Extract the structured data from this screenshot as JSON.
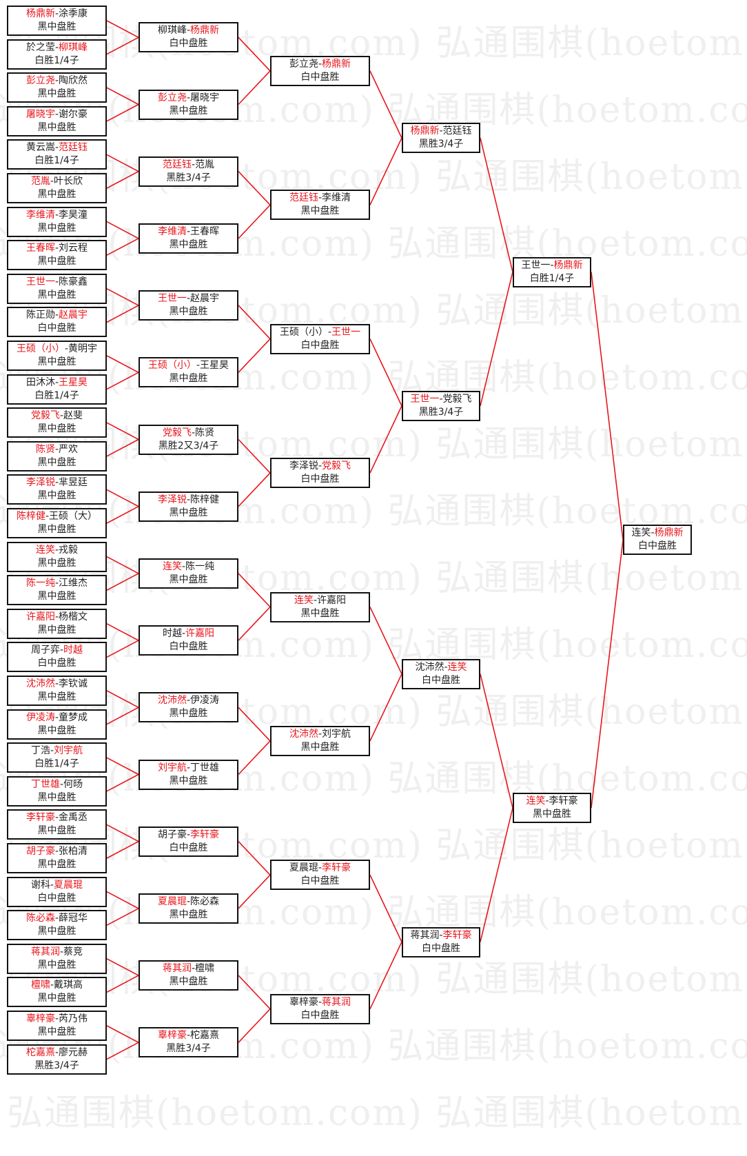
{
  "watermark": {
    "text": "弘通围棋(hoetom.com) 弘通围棋(hoetom.com)"
  },
  "colors": {
    "winner": "#e8151b",
    "line": "#e8151b",
    "border": "#111111"
  },
  "rounds": [
    {
      "matches": [
        {
          "p1": "杨鼎新",
          "p2": "涂季康",
          "winner": 0,
          "result": "黑中盘胜"
        },
        {
          "p1": "於之莹",
          "p2": "柳琪峰",
          "winner": 1,
          "result": "白胜1/4子"
        },
        {
          "p1": "彭立尧",
          "p2": "陶欣然",
          "winner": 0,
          "result": "黑中盘胜"
        },
        {
          "p1": "屠晓宇",
          "p2": "谢尔豪",
          "winner": 0,
          "result": "黑中盘胜"
        },
        {
          "p1": "黄云嵩",
          "p2": "范廷钰",
          "winner": 1,
          "result": "白胜1/4子"
        },
        {
          "p1": "范胤",
          "p2": "叶长欣",
          "winner": 0,
          "result": "黑中盘胜"
        },
        {
          "p1": "李维清",
          "p2": "李昊潼",
          "winner": 0,
          "result": "黑中盘胜"
        },
        {
          "p1": "王春晖",
          "p2": "刘云程",
          "winner": 0,
          "result": "黑中盘胜"
        },
        {
          "p1": "王世一",
          "p2": "陈豪鑫",
          "winner": 0,
          "result": "黑中盘胜"
        },
        {
          "p1": "陈正勋",
          "p2": "赵晨宇",
          "winner": 1,
          "result": "白中盘胜"
        },
        {
          "p1": "王硕（小）",
          "p2": "黄明宇",
          "winner": 0,
          "result": "黑中盘胜"
        },
        {
          "p1": "田沐沐",
          "p2": "王星昊",
          "winner": 1,
          "result": "白胜1/4子"
        },
        {
          "p1": "党毅飞",
          "p2": "赵斐",
          "winner": 0,
          "result": "黑中盘胜"
        },
        {
          "p1": "陈贤",
          "p2": "严欢",
          "winner": 0,
          "result": "黑中盘胜"
        },
        {
          "p1": "李泽锐",
          "p2": "芈昱廷",
          "winner": 0,
          "result": "黑中盘胜"
        },
        {
          "p1": "陈梓健",
          "p2": "王硕（大）",
          "winner": 0,
          "result": "黑中盘胜"
        },
        {
          "p1": "连笑",
          "p2": "戎毅",
          "winner": 0,
          "result": "黑中盘胜"
        },
        {
          "p1": "陈一纯",
          "p2": "江维杰",
          "winner": 0,
          "result": "黑中盘胜"
        },
        {
          "p1": "许嘉阳",
          "p2": "杨楷文",
          "winner": 0,
          "result": "黑中盘胜"
        },
        {
          "p1": "周子弈",
          "p2": "时越",
          "winner": 1,
          "result": "白中盘胜"
        },
        {
          "p1": "沈沛然",
          "p2": "李钦诚",
          "winner": 0,
          "result": "黑中盘胜"
        },
        {
          "p1": "伊凌涛",
          "p2": "童梦成",
          "winner": 0,
          "result": "黑中盘胜"
        },
        {
          "p1": "丁浩",
          "p2": "刘宇航",
          "winner": 1,
          "result": "白胜1/4子"
        },
        {
          "p1": "丁世雄",
          "p2": "何旸",
          "winner": 0,
          "result": "黑中盘胜"
        },
        {
          "p1": "李轩豪",
          "p2": "金禹丞",
          "winner": 0,
          "result": "黑中盘胜"
        },
        {
          "p1": "胡子豪",
          "p2": "张柏清",
          "winner": 0,
          "result": "黑中盘胜"
        },
        {
          "p1": "谢科",
          "p2": "夏晨琨",
          "winner": 1,
          "result": "白中盘胜"
        },
        {
          "p1": "陈必森",
          "p2": "薛冠华",
          "winner": 0,
          "result": "黑中盘胜"
        },
        {
          "p1": "蒋其润",
          "p2": "蔡竞",
          "winner": 0,
          "result": "黑中盘胜"
        },
        {
          "p1": "檀啸",
          "p2": "戴琪高",
          "winner": 0,
          "result": "黑中盘胜"
        },
        {
          "p1": "辜梓豪",
          "p2": "芮乃伟",
          "winner": 0,
          "result": "黑中盘胜"
        },
        {
          "p1": "柁嘉熹",
          "p2": "廖元赫",
          "winner": 0,
          "result": "黑胜3/4子"
        }
      ]
    },
    {
      "matches": [
        {
          "p1": "柳琪峰",
          "p2": "杨鼎新",
          "winner": 1,
          "result": "白中盘胜"
        },
        {
          "p1": "彭立尧",
          "p2": "屠晓宇",
          "winner": 0,
          "result": "黑中盘胜"
        },
        {
          "p1": "范廷钰",
          "p2": "范胤",
          "winner": 0,
          "result": "黑胜3/4子"
        },
        {
          "p1": "李维清",
          "p2": "王春晖",
          "winner": 0,
          "result": "黑中盘胜"
        },
        {
          "p1": "王世一",
          "p2": "赵晨宇",
          "winner": 0,
          "result": "黑中盘胜"
        },
        {
          "p1": "王硕（小）",
          "p2": "王星昊",
          "winner": 0,
          "result": "黑中盘胜"
        },
        {
          "p1": "党毅飞",
          "p2": "陈贤",
          "winner": 0,
          "result": "黑胜2又3/4子"
        },
        {
          "p1": "李泽锐",
          "p2": "陈梓健",
          "winner": 0,
          "result": "黑中盘胜"
        },
        {
          "p1": "连笑",
          "p2": "陈一纯",
          "winner": 0,
          "result": "黑中盘胜"
        },
        {
          "p1": "时越",
          "p2": "许嘉阳",
          "winner": 1,
          "result": "白中盘胜"
        },
        {
          "p1": "沈沛然",
          "p2": "伊凌涛",
          "winner": 0,
          "result": "黑中盘胜"
        },
        {
          "p1": "刘宇航",
          "p2": "丁世雄",
          "winner": 0,
          "result": "黑中盘胜"
        },
        {
          "p1": "胡子豪",
          "p2": "李轩豪",
          "winner": 1,
          "result": "白中盘胜"
        },
        {
          "p1": "夏晨琨",
          "p2": "陈必森",
          "winner": 0,
          "result": "黑中盘胜"
        },
        {
          "p1": "蒋其润",
          "p2": "檀啸",
          "winner": 0,
          "result": "黑中盘胜"
        },
        {
          "p1": "辜梓豪",
          "p2": "柁嘉熹",
          "winner": 0,
          "result": "黑胜3/4子"
        }
      ]
    },
    {
      "matches": [
        {
          "p1": "彭立尧",
          "p2": "杨鼎新",
          "winner": 1,
          "result": "白中盘胜"
        },
        {
          "p1": "范廷钰",
          "p2": "李维清",
          "winner": 0,
          "result": "黑中盘胜"
        },
        {
          "p1": "王硕（小）",
          "p2": "王世一",
          "winner": 1,
          "result": "白中盘胜"
        },
        {
          "p1": "李泽锐",
          "p2": "党毅飞",
          "winner": 1,
          "result": "白中盘胜"
        },
        {
          "p1": "连笑",
          "p2": "许嘉阳",
          "winner": 0,
          "result": "黑中盘胜"
        },
        {
          "p1": "沈沛然",
          "p2": "刘宇航",
          "winner": 0,
          "result": "黑中盘胜"
        },
        {
          "p1": "夏晨琨",
          "p2": "李轩豪",
          "winner": 1,
          "result": "白中盘胜"
        },
        {
          "p1": "辜梓豪",
          "p2": "蒋其润",
          "winner": 1,
          "result": "白中盘胜"
        }
      ]
    },
    {
      "matches": [
        {
          "p1": "杨鼎新",
          "p2": "范廷钰",
          "winner": 0,
          "result": "黑胜3/4子"
        },
        {
          "p1": "王世一",
          "p2": "党毅飞",
          "winner": 0,
          "result": "黑胜3/4子"
        },
        {
          "p1": "沈沛然",
          "p2": "连笑",
          "winner": 1,
          "result": "白中盘胜"
        },
        {
          "p1": "蒋其润",
          "p2": "李轩豪",
          "winner": 1,
          "result": "白中盘胜"
        }
      ]
    },
    {
      "matches": [
        {
          "p1": "王世一",
          "p2": "杨鼎新",
          "winner": 1,
          "result": "白胜1/4子"
        },
        {
          "p1": "连笑",
          "p2": "李轩豪",
          "winner": 0,
          "result": "黑中盘胜"
        }
      ]
    },
    {
      "matches": [
        {
          "p1": "连笑",
          "p2": "杨鼎新",
          "winner": 1,
          "result": "白中盘胜"
        }
      ]
    }
  ]
}
